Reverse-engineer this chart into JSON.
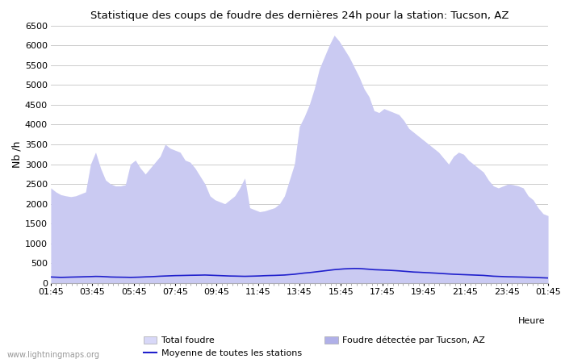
{
  "title": "Statistique des coups de foudre des dernières 24h pour la station: Tucson, AZ",
  "ylabel": "Nb /h",
  "xlabel_right": "Heure",
  "watermark": "www.lightningmaps.org",
  "ylim": [
    0,
    6500
  ],
  "yticks": [
    0,
    500,
    1000,
    1500,
    2000,
    2500,
    3000,
    3500,
    4000,
    4500,
    5000,
    5500,
    6000,
    6500
  ],
  "x_labels": [
    "01:45",
    "03:45",
    "05:45",
    "07:45",
    "09:45",
    "11:45",
    "13:45",
    "15:45",
    "17:45",
    "19:45",
    "21:45",
    "23:45",
    "01:45"
  ],
  "bg_color": "#ffffff",
  "grid_color": "#cccccc",
  "fill_total_color": "#d8d8f8",
  "fill_tucson_color": "#b0b0e8",
  "line_color": "#2020cc",
  "total_foudre": [
    2400,
    2300,
    2230,
    2200,
    2180,
    2200,
    2250,
    2300,
    3000,
    3300,
    2900,
    2600,
    2500,
    2450,
    2450,
    2480,
    3000,
    3100,
    2900,
    2750,
    2900,
    3050,
    3200,
    3500,
    3400,
    3350,
    3300,
    3100,
    3050,
    2900,
    2700,
    2500,
    2200,
    2100,
    2050,
    2000,
    2100,
    2200,
    2400,
    2650,
    1900,
    1850,
    1800,
    1820,
    1860,
    1900,
    2000,
    2200,
    2600,
    3000,
    3950,
    4200,
    4500,
    4900,
    5400,
    5700,
    6000,
    6250,
    6100,
    5900,
    5700,
    5450,
    5200,
    4900,
    4700,
    4350,
    4300,
    4400,
    4350,
    4300,
    4250,
    4100,
    3900,
    3800,
    3700,
    3600,
    3500,
    3400,
    3300,
    3150,
    3000,
    3200,
    3300,
    3250,
    3100,
    3000,
    2900,
    2800,
    2600,
    2450,
    2400,
    2450,
    2500,
    2480,
    2450,
    2400,
    2200,
    2100,
    1900,
    1750,
    1700
  ],
  "tucson_detected": [
    2400,
    2300,
    2230,
    2200,
    2180,
    2200,
    2250,
    2300,
    3000,
    3300,
    2900,
    2600,
    2500,
    2450,
    2450,
    2480,
    3000,
    3100,
    2900,
    2750,
    2900,
    3050,
    3200,
    3500,
    3400,
    3350,
    3300,
    3100,
    3050,
    2900,
    2700,
    2500,
    2200,
    2100,
    2050,
    2000,
    2100,
    2200,
    2400,
    2650,
    1900,
    1850,
    1800,
    1820,
    1860,
    1900,
    2000,
    2200,
    2600,
    3000,
    3950,
    4200,
    4500,
    4900,
    5400,
    5700,
    6000,
    6250,
    6100,
    5900,
    5700,
    5450,
    5200,
    4900,
    4700,
    4350,
    4300,
    4400,
    4350,
    4300,
    4250,
    4100,
    3900,
    3800,
    3700,
    3600,
    3500,
    3400,
    3300,
    3150,
    3000,
    3200,
    3300,
    3250,
    3100,
    3000,
    2900,
    2800,
    2600,
    2450,
    2400,
    2450,
    2500,
    2480,
    2450,
    2400,
    2200,
    2100,
    1900,
    1750,
    1700
  ],
  "moyenne": [
    155,
    150,
    145,
    148,
    152,
    155,
    158,
    162,
    165,
    170,
    168,
    162,
    155,
    152,
    150,
    148,
    145,
    148,
    152,
    158,
    162,
    168,
    175,
    180,
    185,
    190,
    192,
    195,
    198,
    200,
    202,
    205,
    200,
    195,
    190,
    185,
    180,
    178,
    175,
    172,
    175,
    178,
    182,
    188,
    192,
    195,
    200,
    205,
    215,
    225,
    240,
    255,
    265,
    280,
    295,
    310,
    325,
    340,
    350,
    360,
    365,
    370,
    368,
    360,
    350,
    340,
    335,
    330,
    325,
    318,
    310,
    300,
    290,
    280,
    275,
    268,
    262,
    255,
    248,
    240,
    232,
    225,
    220,
    215,
    210,
    205,
    200,
    195,
    185,
    175,
    170,
    165,
    160,
    158,
    155,
    152,
    148,
    145,
    140,
    135,
    130
  ]
}
